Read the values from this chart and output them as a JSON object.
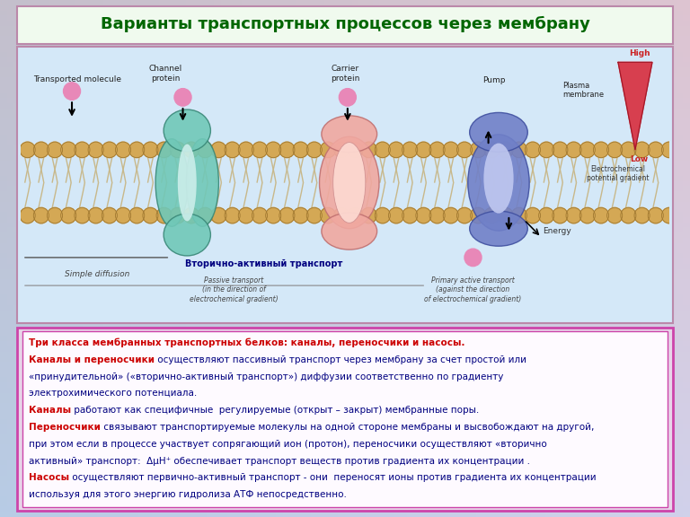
{
  "title": "Варианты транспортных процессов через мембрану",
  "title_color": "#006600",
  "title_fontsize": 13,
  "title_bg": "#edfaed",
  "title_border": "#bb88aa",
  "top_panel_bg": "#d0e8f8",
  "top_panel_border": "#bb88aa",
  "fig_bg_top": "#b8d0e8",
  "fig_bg_bot": "#d8c8e8",
  "text_lines": [
    {
      "parts": [
        {
          "text": "Три класса мембранных транспортных белков: каналы, переносчики и насосы.",
          "bold": true,
          "color": "#cc0000"
        }
      ]
    },
    {
      "parts": [
        {
          "text": "Каналы и переносчики",
          "bold": true,
          "color": "#cc0000"
        },
        {
          "text": " осуществляют пассивный транспорт через мембрану за счет простой или",
          "bold": false,
          "color": "#000080"
        }
      ]
    },
    {
      "parts": [
        {
          "text": "«принудительной» («вторично-активный транспорт») диффузии соответственно по градиенту",
          "bold": false,
          "color": "#000080"
        }
      ]
    },
    {
      "parts": [
        {
          "text": "электрохимического потенциала.",
          "bold": false,
          "color": "#000080"
        }
      ]
    },
    {
      "parts": [
        {
          "text": "Каналы",
          "bold": true,
          "color": "#cc0000"
        },
        {
          "text": " работают как специфичные  регулируемые (открыт – закрыт) мембранные поры.",
          "bold": false,
          "color": "#000080"
        }
      ]
    },
    {
      "parts": [
        {
          "text": "Переносчики",
          "bold": true,
          "color": "#cc0000"
        },
        {
          "text": " связывают транспортируемые молекулы на одной стороне мембраны и высвобождают на другой,",
          "bold": false,
          "color": "#000080"
        }
      ]
    },
    {
      "parts": [
        {
          "text": "при этом если в процессе участвует сопрягающий ион (протон), переносчики осуществляют «вторично",
          "bold": false,
          "color": "#000080"
        }
      ]
    },
    {
      "parts": [
        {
          "text": "активный» транспорт:  ΔμH⁺ обеспечивает транспорт веществ против градиента их концентрации .",
          "bold": false,
          "color": "#000080"
        }
      ]
    },
    {
      "parts": [
        {
          "text": "Насосы",
          "bold": true,
          "color": "#cc0000"
        },
        {
          "text": " осуществляют первично-активный транспорт - они  переносят ионы против градиента их концентрации",
          "bold": false,
          "color": "#000080"
        }
      ]
    },
    {
      "parts": [
        {
          "text": "используя для этого энергию гидролиза АТФ непосредственно.",
          "bold": false,
          "color": "#000080"
        }
      ]
    }
  ]
}
